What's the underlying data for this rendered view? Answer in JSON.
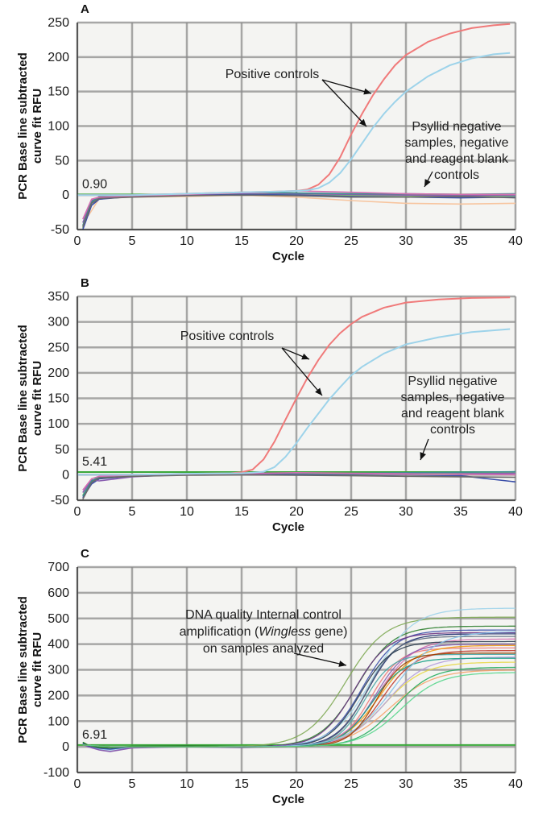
{
  "chart_data": [
    {
      "type": "line",
      "panel": "A",
      "xlabel": "Cycle",
      "ylabel_lines": [
        "PCR Base line subtracted",
        "curve fit RFU"
      ],
      "xlim": [
        0,
        40
      ],
      "ylim": [
        -50,
        250
      ],
      "xticks": [
        0,
        5,
        10,
        15,
        20,
        25,
        30,
        35,
        40
      ],
      "yticks": [
        -50,
        0,
        50,
        100,
        150,
        200,
        250
      ],
      "threshold_label": "0.90",
      "threshold_value": 0.9,
      "grid": true,
      "series": [
        {
          "group": "Positive controls",
          "color": "#f07a7a",
          "x": [
            0,
            5,
            10,
            15,
            18,
            20,
            21,
            22,
            23,
            24,
            25,
            26,
            27,
            28,
            29,
            30,
            32,
            34,
            36,
            38,
            39.5
          ],
          "y": [
            0,
            0,
            2,
            4,
            5,
            6,
            8,
            15,
            30,
            55,
            88,
            118,
            145,
            168,
            188,
            203,
            222,
            234,
            242,
            246,
            248
          ]
        },
        {
          "group": "Positive controls",
          "color": "#9dd3ea",
          "x": [
            0,
            5,
            10,
            15,
            18,
            20,
            21,
            22,
            23,
            24,
            25,
            26,
            27,
            28,
            29,
            30,
            32,
            34,
            36,
            38,
            39.5
          ],
          "y": [
            0,
            0,
            2,
            4,
            5,
            6,
            7,
            10,
            18,
            32,
            52,
            75,
            98,
            118,
            135,
            150,
            172,
            188,
            198,
            204,
            206
          ]
        },
        {
          "group": "Psyllid negative samples, negative and reagent blank controls",
          "color": "#f7c59f",
          "x": [
            1,
            2,
            5,
            10,
            15,
            20,
            25,
            30,
            35,
            40
          ],
          "y": [
            -30,
            -5,
            -3,
            -2,
            0,
            -3,
            -8,
            -12,
            -13,
            -12
          ]
        },
        {
          "group": "Psyllid negative samples, negative and reagent blank controls",
          "color": "#7fbf6a",
          "x": [
            0.5,
            1.3,
            2,
            5,
            10,
            15,
            20,
            25,
            30,
            35,
            40
          ],
          "y": [
            -48,
            -12,
            -3,
            -1,
            1,
            2,
            1,
            0,
            -1,
            -2,
            -1
          ]
        },
        {
          "group": "Psyllid negative samples, negative and reagent blank controls",
          "color": "#3b4fa8",
          "x": [
            0.5,
            1.3,
            2,
            5,
            10,
            15,
            20,
            25,
            30,
            35,
            40
          ],
          "y": [
            -50,
            -15,
            -6,
            -2,
            0,
            1,
            0,
            -2,
            -3,
            -4,
            -3
          ]
        },
        {
          "group": "Psyllid negative samples, negative and reagent blank controls",
          "color": "#8a5fb0",
          "x": [
            0.5,
            1.3,
            2,
            5,
            10,
            15,
            20,
            25,
            30,
            35,
            40
          ],
          "y": [
            -40,
            -8,
            -4,
            -1,
            2,
            3,
            2,
            1,
            0,
            -1,
            0
          ]
        },
        {
          "group": "Psyllid negative samples, negative and reagent blank controls",
          "color": "#3a8f8f",
          "x": [
            0.5,
            1.3,
            2,
            5,
            10,
            15,
            20,
            25,
            30,
            35,
            40
          ],
          "y": [
            -44,
            -10,
            -2,
            0,
            2,
            4,
            3,
            2,
            2,
            1,
            2
          ]
        },
        {
          "group": "Psyllid negative samples, negative and reagent blank controls",
          "color": "#d36fb0",
          "x": [
            0.5,
            1.3,
            2,
            5,
            10,
            15,
            20,
            25,
            30,
            35,
            40
          ],
          "y": [
            -35,
            -6,
            -3,
            -2,
            1,
            3,
            6,
            4,
            2,
            1,
            1
          ]
        },
        {
          "group": "Psyllid negative samples, negative and reagent blank controls",
          "color": "#6a6a6a",
          "x": [
            0.5,
            1.3,
            2,
            5,
            10,
            15,
            20,
            25,
            30,
            35,
            40
          ],
          "y": [
            -46,
            -12,
            -5,
            -3,
            -1,
            0,
            -1,
            -3,
            -3,
            -2,
            -4
          ]
        }
      ],
      "annotations": [
        {
          "text_lines": [
            "Positive controls"
          ]
        },
        {
          "text_lines": [
            "Psyllid negative",
            "samples, negative",
            "and reagent blank",
            "controls"
          ]
        }
      ]
    },
    {
      "type": "line",
      "panel": "B",
      "xlabel": "Cycle",
      "ylabel_lines": [
        "PCR Base line subtracted",
        "curve fit RFU"
      ],
      "xlim": [
        0,
        40
      ],
      "ylim": [
        -50,
        350
      ],
      "xticks": [
        0,
        5,
        10,
        15,
        20,
        25,
        30,
        35,
        40
      ],
      "yticks": [
        -50,
        0,
        50,
        100,
        150,
        200,
        250,
        300,
        350
      ],
      "threshold_label": "5.41",
      "threshold_value": 5.41,
      "grid": true,
      "series": [
        {
          "group": "Positive controls",
          "color": "#f07a7a",
          "x": [
            0,
            5,
            10,
            14,
            15,
            16,
            17,
            18,
            19,
            20,
            21,
            22,
            23,
            24,
            25,
            26,
            28,
            30,
            33,
            36,
            39.5
          ],
          "y": [
            0,
            0,
            2,
            3,
            5,
            10,
            30,
            65,
            108,
            150,
            190,
            225,
            255,
            278,
            296,
            310,
            328,
            338,
            344,
            347,
            348
          ]
        },
        {
          "group": "Positive controls",
          "color": "#9dd3ea",
          "x": [
            0,
            5,
            10,
            15,
            16,
            17,
            18,
            19,
            20,
            21,
            22,
            23,
            24,
            25,
            26,
            28,
            30,
            33,
            36,
            39.5
          ],
          "y": [
            0,
            0,
            2,
            3,
            4,
            6,
            15,
            35,
            62,
            92,
            120,
            148,
            172,
            195,
            212,
            238,
            256,
            270,
            280,
            286
          ]
        },
        {
          "group": "Psyllid negative samples, negative and reagent blank controls",
          "color": "#7fbf6a",
          "x": [
            0.5,
            1.3,
            2,
            5,
            10,
            15,
            20,
            25,
            30,
            35,
            40
          ],
          "y": [
            -40,
            -14,
            -5,
            -2,
            1,
            2,
            2,
            1,
            2,
            3,
            4
          ]
        },
        {
          "group": "Psyllid negative samples, negative and reagent blank controls",
          "color": "#3b4fa8",
          "x": [
            0.5,
            1.3,
            2,
            5,
            10,
            15,
            20,
            25,
            30,
            35,
            40
          ],
          "y": [
            -45,
            -18,
            -8,
            -3,
            0,
            1,
            0,
            -1,
            -3,
            -2,
            -14
          ]
        },
        {
          "group": "Psyllid negative samples, negative and reagent blank controls",
          "color": "#8a5fb0",
          "x": [
            0.5,
            1.3,
            2,
            5,
            10,
            15,
            20,
            25,
            30,
            35,
            40
          ],
          "y": [
            -35,
            -10,
            -12,
            -4,
            1,
            2,
            3,
            2,
            1,
            2,
            3
          ]
        },
        {
          "group": "Psyllid negative samples, negative and reagent blank controls",
          "color": "#3a8f8f",
          "x": [
            0.5,
            1.3,
            2,
            5,
            10,
            15,
            20,
            25,
            30,
            35,
            40
          ],
          "y": [
            -42,
            -12,
            -4,
            0,
            2,
            3,
            3,
            3,
            4,
            5,
            6
          ]
        },
        {
          "group": "Psyllid negative samples, negative and reagent blank controls",
          "color": "#d36fb0",
          "x": [
            0.5,
            1.3,
            2,
            5,
            10,
            15,
            20,
            25,
            30,
            35,
            40
          ],
          "y": [
            -30,
            -8,
            -3,
            -1,
            1,
            2,
            4,
            3,
            2,
            1,
            0
          ]
        },
        {
          "group": "Psyllid negative samples, negative and reagent blank controls",
          "color": "#6a6a6a",
          "x": [
            0.5,
            1.3,
            2,
            5,
            10,
            15,
            20,
            25,
            30,
            35,
            40
          ],
          "y": [
            -48,
            -15,
            -6,
            -3,
            -1,
            0,
            -1,
            -2,
            -3,
            -4,
            -5
          ]
        }
      ],
      "annotations": [
        {
          "text_lines": [
            "Positive controls"
          ]
        },
        {
          "text_lines": [
            "Psyllid negative",
            "samples, negative",
            "and reagent blank",
            "controls"
          ]
        }
      ]
    },
    {
      "type": "line",
      "panel": "C",
      "xlabel": "Cycle",
      "ylabel_lines": [
        "PCR Base line subtracted",
        "curve fit RFU"
      ],
      "xlim": [
        0,
        40
      ],
      "ylim": [
        -100,
        700
      ],
      "xticks": [
        0,
        5,
        10,
        15,
        20,
        25,
        30,
        35,
        40
      ],
      "yticks": [
        -100,
        0,
        100,
        200,
        300,
        400,
        500,
        600,
        700
      ],
      "threshold_label": "6.91",
      "threshold_value": 6.91,
      "grid": true,
      "sigmoid_series": [
        {
          "color": "#7faa55",
          "midpoint": 24.5,
          "plateau": 505,
          "slope": 0.55
        },
        {
          "color": "#2f7f2f",
          "midpoint": 25.5,
          "plateau": 470,
          "slope": 0.6
        },
        {
          "color": "#3b4fa8",
          "midpoint": 26.0,
          "plateau": 455,
          "slope": 0.65
        },
        {
          "color": "#1c2a6e",
          "midpoint": 26.5,
          "plateau": 440,
          "slope": 0.7
        },
        {
          "color": "#9dd3ea",
          "midpoint": 27.0,
          "plateau": 540,
          "slope": 0.55
        },
        {
          "color": "#f07a7a",
          "midpoint": 26.8,
          "plateau": 385,
          "slope": 0.75
        },
        {
          "color": "#d36fb0",
          "midpoint": 27.5,
          "plateau": 420,
          "slope": 0.6
        },
        {
          "color": "#8a5fb0",
          "midpoint": 27.2,
          "plateau": 400,
          "slope": 0.7
        },
        {
          "color": "#e8d84a",
          "midpoint": 28.0,
          "plateau": 330,
          "slope": 0.55
        },
        {
          "color": "#f5a36a",
          "midpoint": 28.5,
          "plateau": 300,
          "slope": 0.5
        },
        {
          "color": "#4aa6a6",
          "midpoint": 26.2,
          "plateau": 360,
          "slope": 0.8
        },
        {
          "color": "#c0392b",
          "midpoint": 27.8,
          "plateau": 375,
          "slope": 0.65
        },
        {
          "color": "#5d6d7e",
          "midpoint": 26.4,
          "plateau": 430,
          "slope": 0.75
        },
        {
          "color": "#27ae60",
          "midpoint": 29.0,
          "plateau": 310,
          "slope": 0.6
        },
        {
          "color": "#2c3e50",
          "midpoint": 25.8,
          "plateau": 410,
          "slope": 0.7
        },
        {
          "color": "#b39ddb",
          "midpoint": 28.2,
          "plateau": 350,
          "slope": 0.55
        },
        {
          "color": "#f39c12",
          "midpoint": 27.6,
          "plateau": 395,
          "slope": 0.6
        },
        {
          "color": "#16a085",
          "midpoint": 26.9,
          "plateau": 345,
          "slope": 0.7
        },
        {
          "color": "#6c3483",
          "midpoint": 25.3,
          "plateau": 445,
          "slope": 0.65
        },
        {
          "color": "#85c1e9",
          "midpoint": 28.8,
          "plateau": 450,
          "slope": 0.5
        },
        {
          "color": "#a04000",
          "midpoint": 27.3,
          "plateau": 365,
          "slope": 0.8
        },
        {
          "color": "#58d68d",
          "midpoint": 29.5,
          "plateau": 290,
          "slope": 0.55
        }
      ],
      "baseline_series": [
        {
          "color": "#9dd3ea",
          "x": [
            0.5,
            1,
            2,
            3,
            5,
            10,
            15,
            20
          ],
          "y": [
            15,
            2,
            -8,
            -12,
            0,
            2,
            -2,
            4
          ]
        },
        {
          "color": "#8a5fb0",
          "x": [
            0.5,
            1,
            2,
            3,
            5,
            10,
            15,
            20
          ],
          "y": [
            10,
            0,
            -12,
            -18,
            -4,
            0,
            -3,
            2
          ]
        },
        {
          "color": "#3b4fa8",
          "x": [
            0.5,
            1,
            2,
            3,
            5,
            10,
            15,
            20
          ],
          "y": [
            12,
            4,
            -5,
            -9,
            1,
            3,
            0,
            5
          ]
        },
        {
          "color": "#2f7f2f",
          "x": [
            0.5,
            1,
            2,
            3,
            5,
            10,
            15,
            20
          ],
          "y": [
            18,
            6,
            -2,
            -4,
            2,
            4,
            1,
            6
          ]
        }
      ],
      "annotations": [
        {
          "text_lines": [
            "DNA quality Internal control",
            "amplification (",
            "Wingless",
            " gene)",
            "on samples analyzed"
          ]
        }
      ]
    }
  ]
}
